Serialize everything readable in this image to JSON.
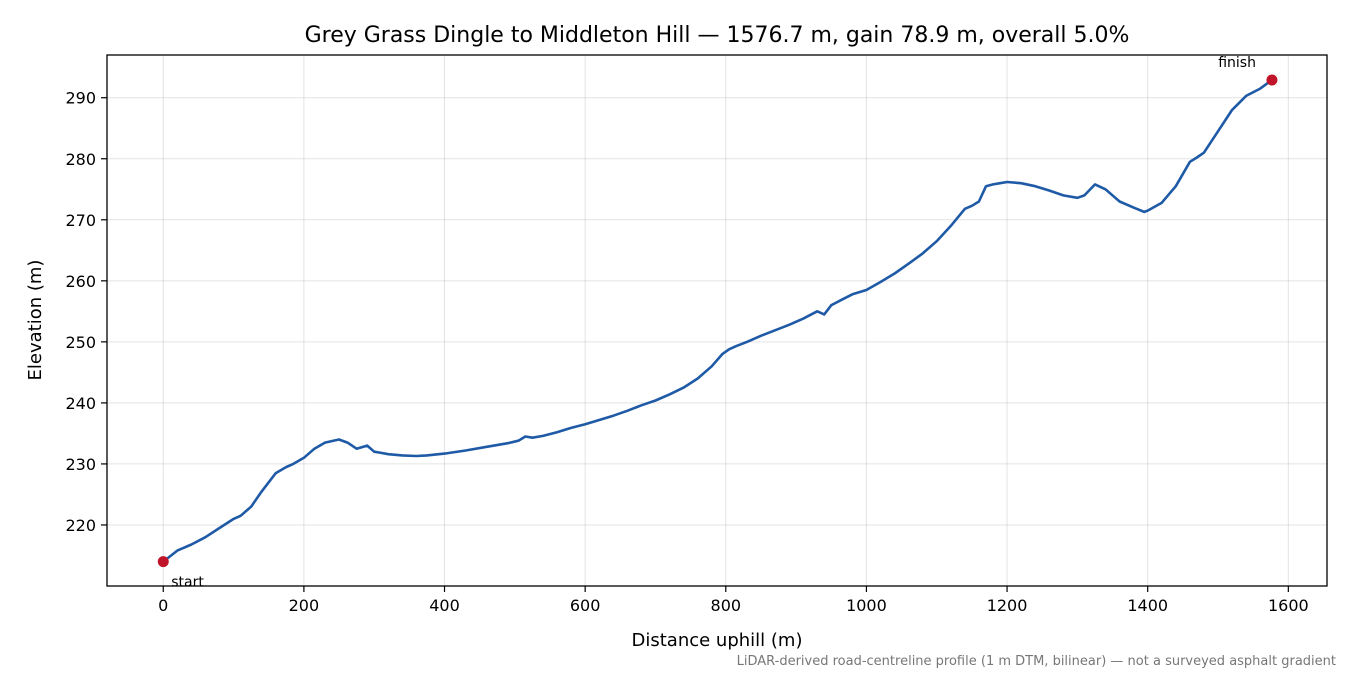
{
  "chart_data": {
    "type": "line",
    "title": "Grey Grass Dingle to Middleton Hill — 1576.7 m, gain 78.9 m, overall 5.0%",
    "xlabel": "Distance uphill (m)",
    "ylabel": "Elevation (m)",
    "xlim": [
      -80,
      1655
    ],
    "ylim": [
      210,
      297
    ],
    "xticks": [
      0,
      200,
      400,
      600,
      800,
      1000,
      1200,
      1400,
      1600
    ],
    "yticks": [
      220,
      230,
      240,
      250,
      260,
      270,
      280,
      290
    ],
    "grid": true,
    "series": [
      {
        "line_color": "#1f5aa6",
        "x": [
          0,
          20,
          40,
          60,
          80,
          100,
          110,
          125,
          140,
          160,
          175,
          185,
          200,
          215,
          230,
          250,
          262,
          275,
          290,
          300,
          310,
          320,
          340,
          360,
          375,
          400,
          430,
          460,
          490,
          505,
          515,
          525,
          540,
          560,
          580,
          600,
          620,
          640,
          660,
          680,
          700,
          720,
          740,
          760,
          780,
          795,
          805,
          815,
          830,
          850,
          870,
          890,
          910,
          930,
          940,
          950,
          955,
          965,
          980,
          1000,
          1020,
          1040,
          1060,
          1080,
          1100,
          1120,
          1140,
          1150,
          1160,
          1170,
          1180,
          1190,
          1200,
          1220,
          1240,
          1260,
          1280,
          1300,
          1310,
          1325,
          1340,
          1360,
          1380,
          1395,
          1400,
          1420,
          1440,
          1460,
          1470,
          1480,
          1500,
          1520,
          1540,
          1560,
          1576.7
        ],
        "y": [
          214.0,
          215.8,
          216.8,
          218.0,
          219.5,
          221.0,
          221.5,
          223.0,
          225.5,
          228.5,
          229.5,
          230.0,
          231.0,
          232.5,
          233.5,
          234.0,
          233.5,
          232.5,
          233.0,
          232.0,
          231.8,
          231.6,
          231.4,
          231.3,
          231.4,
          231.7,
          232.2,
          232.8,
          233.4,
          233.8,
          234.5,
          234.3,
          234.6,
          235.2,
          235.9,
          236.5,
          237.2,
          237.9,
          238.7,
          239.6,
          240.4,
          241.4,
          242.5,
          244.0,
          246.0,
          248.0,
          248.8,
          249.3,
          250.0,
          251.0,
          251.9,
          252.8,
          253.8,
          255.0,
          254.5,
          256.0,
          256.3,
          256.9,
          257.8,
          258.5,
          259.8,
          261.2,
          262.8,
          264.5,
          266.5,
          269.0,
          271.8,
          272.3,
          273.0,
          275.5,
          275.8,
          276.0,
          276.2,
          276.0,
          275.5,
          274.8,
          274.0,
          273.6,
          274.0,
          275.8,
          275.0,
          273.0,
          272.0,
          271.3,
          271.5,
          272.8,
          275.5,
          279.5,
          280.2,
          281.0,
          284.5,
          288.0,
          290.3,
          291.5,
          292.9
        ],
        "markers": [
          {
            "x": 0,
            "y": 214.0,
            "label": "start"
          },
          {
            "x": 1576.7,
            "y": 292.9,
            "label": "finish"
          }
        ],
        "marker_color": "#c0142b"
      }
    ],
    "footnote": "LiDAR-derived road-centreline profile (1 m DTM, bilinear) — not a surveyed asphalt gradient"
  }
}
